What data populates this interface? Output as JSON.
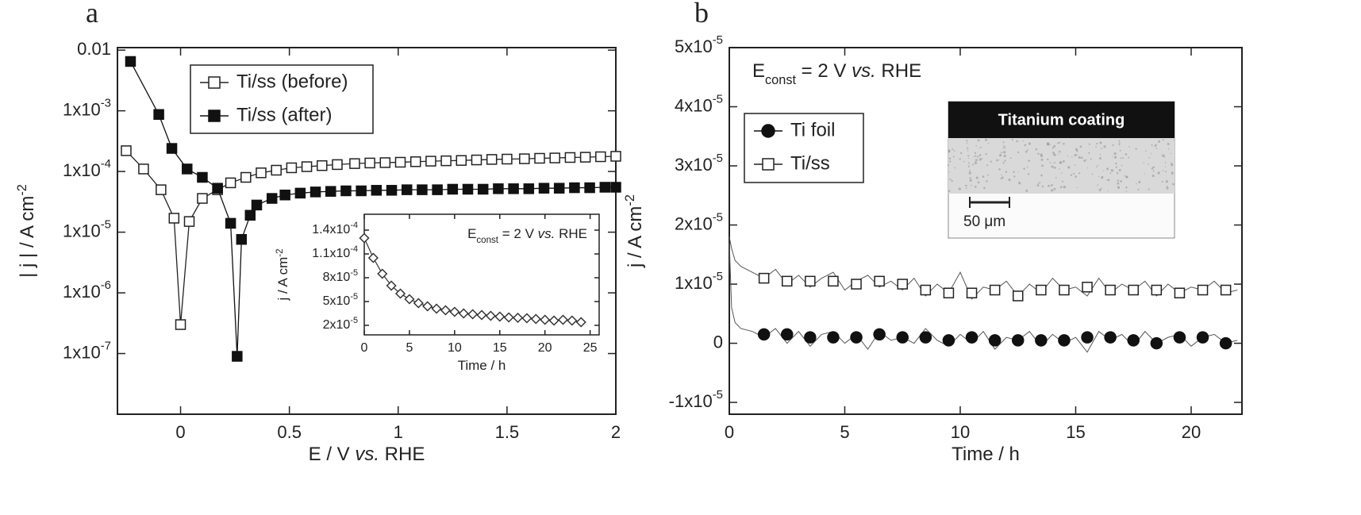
{
  "chart_data": [
    {
      "type": "line",
      "panel_label": "a",
      "xlabel": [
        "E / V ",
        "vs.",
        " RHE"
      ],
      "ylabel": [
        "| j | / A cm",
        "-2"
      ],
      "xlim": [
        -0.29,
        2
      ],
      "ylim": [
        1e-08,
        0.011
      ],
      "yscale": "log",
      "xticks": [
        0,
        0.5,
        1,
        1.5,
        2
      ],
      "yticks": [
        0.01,
        {
          "value": 0.001,
          "label": "1x10-3"
        },
        {
          "value": 0.0001,
          "label": "1x10-4"
        },
        {
          "value": 1e-05,
          "label": "1x10-5"
        },
        {
          "value": 1e-06,
          "label": "1x10-6"
        },
        {
          "value": 1e-07,
          "label": "1x10-7"
        }
      ],
      "legend": "upper left",
      "series": [
        {
          "name": "Ti/ss (before)",
          "color": "#222222",
          "marker": "square",
          "filled": false,
          "line": true,
          "x": [
            -0.25,
            -0.17,
            -0.09,
            -0.03,
            0.0,
            0.04,
            0.1,
            0.17,
            0.23,
            0.3,
            0.37,
            0.44,
            0.51,
            0.58,
            0.65,
            0.72,
            0.8,
            0.87,
            0.94,
            1.01,
            1.08,
            1.15,
            1.22,
            1.29,
            1.36,
            1.43,
            1.5,
            1.58,
            1.65,
            1.72,
            1.79,
            1.86,
            1.93,
            2.0
          ],
          "values": [
            0.00022,
            0.00011,
            5e-05,
            1.7e-05,
            3e-07,
            1.5e-05,
            3.6e-05,
            5e-05,
            6.5e-05,
            8e-05,
            9.5e-05,
            0.000105,
            0.000115,
            0.00012,
            0.000125,
            0.00013,
            0.000135,
            0.000138,
            0.00014,
            0.000142,
            0.000145,
            0.000148,
            0.00015,
            0.000152,
            0.000155,
            0.000158,
            0.00016,
            0.000162,
            0.000165,
            0.000167,
            0.00017,
            0.000172,
            0.000175,
            0.000178
          ]
        },
        {
          "name": "Ti/ss (after)",
          "color": "#111111",
          "marker": "square",
          "filled": true,
          "line": true,
          "x": [
            -0.23,
            -0.1,
            -0.04,
            0.03,
            0.1,
            0.17,
            0.23,
            0.26,
            0.28,
            0.32,
            0.35,
            0.42,
            0.48,
            0.55,
            0.62,
            0.69,
            0.76,
            0.83,
            0.9,
            0.97,
            1.04,
            1.11,
            1.18,
            1.25,
            1.32,
            1.39,
            1.46,
            1.53,
            1.6,
            1.67,
            1.74,
            1.81,
            1.88,
            1.95,
            2.0
          ],
          "values": [
            0.0065,
            0.00087,
            0.00024,
            0.00011,
            8e-05,
            5.3e-05,
            1.4e-05,
            9e-08,
            7.6e-06,
            1.9e-05,
            2.8e-05,
            3.6e-05,
            4.1e-05,
            4.4e-05,
            4.6e-05,
            4.7e-05,
            4.8e-05,
            4.8e-05,
            4.9e-05,
            4.9e-05,
            5e-05,
            5e-05,
            5e-05,
            5.1e-05,
            5.1e-05,
            5.1e-05,
            5.2e-05,
            5.2e-05,
            5.2e-05,
            5.3e-05,
            5.3e-05,
            5.4e-05,
            5.4e-05,
            5.5e-05,
            5.5e-05
          ]
        }
      ],
      "inset": {
        "type": "line",
        "xlabel": "Time / h",
        "ylabel": [
          "j / A cm",
          "-2"
        ],
        "annotation": [
          "E",
          "const",
          " = 2 V ",
          "vs.",
          " RHE"
        ],
        "xlim": [
          0,
          26
        ],
        "ylim": [
          8e-06,
          0.00016
        ],
        "xticks": [
          0,
          5,
          10,
          15,
          20,
          25
        ],
        "yticks": [
          {
            "value": 0.00014,
            "label": "1.4x10-4"
          },
          {
            "value": 0.00011,
            "label": "1.1x10-4"
          },
          {
            "value": 8e-05,
            "label": "8x10-5"
          },
          {
            "value": 5e-05,
            "label": "5x10-5"
          },
          {
            "value": 2e-05,
            "label": "2x10-5"
          }
        ],
        "series": [
          {
            "color": "#333333",
            "marker": "diamond",
            "filled": false,
            "line": true,
            "x": [
              0,
              1,
              2,
              3,
              4,
              5,
              6,
              7,
              8,
              9,
              10,
              11,
              12,
              13,
              14,
              15,
              16,
              17,
              18,
              19,
              20,
              21,
              22,
              23,
              24
            ],
            "values": [
              0.00013,
              0.000105,
              8.5e-05,
              7e-05,
              6e-05,
              5.3e-05,
              4.8e-05,
              4.4e-05,
              4.1e-05,
              3.9e-05,
              3.7e-05,
              3.5e-05,
              3.4e-05,
              3.3e-05,
              3.2e-05,
              3.1e-05,
              3e-05,
              2.95e-05,
              2.9e-05,
              2.8e-05,
              2.7e-05,
              2.6e-05,
              2.7e-05,
              2.6e-05,
              2.4e-05
            ]
          }
        ]
      }
    },
    {
      "type": "line",
      "panel_label": "b",
      "xlabel": "Time / h",
      "ylabel": [
        "j / A cm",
        "-2"
      ],
      "annotation": [
        "E",
        "const",
        " = 2 V ",
        "vs.",
        " RHE"
      ],
      "image": {
        "title": "Titanium coating",
        "scale_bar": "50 μm"
      },
      "xlim": [
        0,
        22.2
      ],
      "ylim": [
        -1.2e-05,
        5e-05
      ],
      "xticks": [
        0,
        5,
        10,
        15,
        20
      ],
      "yticks": [
        {
          "value": 5e-05,
          "label": "5x10-5"
        },
        {
          "value": 4e-05,
          "label": "4x10-5"
        },
        {
          "value": 3e-05,
          "label": "3x10-5"
        },
        {
          "value": 2e-05,
          "label": "2x10-5"
        },
        {
          "value": 1e-05,
          "label": "1x10-5"
        },
        0,
        {
          "value": -1e-05,
          "label": "-1x10-5"
        }
      ],
      "legend": "upper left",
      "series": [
        {
          "color": "#555555",
          "marker": "none",
          "line": true,
          "x": [
            0,
            0.1,
            0.25,
            0.5,
            1,
            1.5,
            2,
            2.5,
            3,
            3.5,
            4,
            4.5,
            5,
            5.5,
            6,
            6.5,
            7,
            7.5,
            8,
            8.5,
            9,
            9.5,
            10,
            10.5,
            11,
            11.5,
            12,
            12.5,
            13,
            13.5,
            14,
            14.5,
            15,
            15.5,
            16,
            16.5,
            17,
            17.5,
            18,
            18.5,
            19,
            19.5,
            20,
            20.5,
            21,
            21.5,
            22
          ],
          "values": [
            1.8e-05,
            1.6e-05,
            1.4e-05,
            1.3e-05,
            1.2e-05,
            1.1e-05,
            1.25e-05,
            1e-05,
            1.15e-05,
            9.5e-06,
            1.1e-05,
            1.2e-05,
            9e-06,
            1.05e-05,
            1.15e-05,
            9.5e-06,
            1.05e-05,
            9e-06,
            1.1e-05,
            8e-06,
            1e-05,
            8.5e-06,
            1.2e-05,
            7.5e-06,
            9.5e-06,
            9e-06,
            1.05e-05,
            8e-06,
            1e-05,
            8.5e-06,
            1.1e-05,
            9e-06,
            9.5e-06,
            8e-06,
            1.1e-05,
            8.5e-06,
            1e-05,
            9e-06,
            1.05e-05,
            8e-06,
            1e-05,
            8.5e-06,
            9.5e-06,
            9e-06,
            1.05e-05,
            8.5e-06,
            9e-06
          ]
        },
        {
          "color": "#555555",
          "marker": "none",
          "line": true,
          "x": [
            0,
            0.1,
            0.25,
            0.5,
            1,
            1.5,
            2,
            2.5,
            3,
            3.5,
            4,
            4.5,
            5,
            5.5,
            6,
            6.5,
            7,
            7.5,
            8,
            8.5,
            9,
            9.5,
            10,
            10.5,
            11,
            11.5,
            12,
            12.5,
            13,
            13.5,
            14,
            14.5,
            15,
            15.5,
            16,
            16.5,
            17,
            17.5,
            18,
            18.5,
            19,
            19.5,
            20,
            20.5,
            21,
            21.5,
            22
          ],
          "values": [
            1.7e-05,
            6e-06,
            3.5e-06,
            2.5e-06,
            2e-06,
            1e-06,
            2.5e-06,
            0,
            2e-06,
            -5e-07,
            1.5e-06,
            2e-06,
            0,
            1.5e-06,
            -1e-06,
            2e-06,
            5e-07,
            1e-06,
            0,
            2.5e-06,
            5e-07,
            -5e-07,
            1.5e-06,
            0,
            2e-06,
            -1e-06,
            1e-06,
            5e-07,
            2e-06,
            -5e-07,
            1.5e-06,
            0,
            1e-06,
            -1.5e-06,
            2e-06,
            5e-07,
            1.5e-06,
            -5e-07,
            2e-06,
            0,
            1e-06,
            1.5e-06,
            -5e-07,
            1e-06,
            1.5e-06,
            0,
            5e-07
          ]
        },
        {
          "name": "Ti foil",
          "color": "#111111",
          "marker": "circle",
          "filled": true,
          "line": false,
          "x": [
            1.5,
            2.5,
            3.5,
            4.5,
            5.5,
            6.5,
            7.5,
            8.5,
            9.5,
            10.5,
            11.5,
            12.5,
            13.5,
            14.5,
            15.5,
            16.5,
            17.5,
            18.5,
            19.5,
            20.5,
            21.5
          ],
          "values": [
            1.5e-06,
            1.5e-06,
            1e-06,
            1e-06,
            1e-06,
            1.5e-06,
            1e-06,
            1e-06,
            5e-07,
            1e-06,
            5e-07,
            5e-07,
            5e-07,
            5e-07,
            1e-06,
            1e-06,
            5e-07,
            0,
            1e-06,
            1e-06,
            0
          ]
        },
        {
          "name": "Ti/ss",
          "color": "#222222",
          "marker": "square",
          "filled": false,
          "line": false,
          "x": [
            1.5,
            2.5,
            3.5,
            4.5,
            5.5,
            6.5,
            7.5,
            8.5,
            9.5,
            10.5,
            11.5,
            12.5,
            13.5,
            14.5,
            15.5,
            16.5,
            17.5,
            18.5,
            19.5,
            20.5,
            21.5
          ],
          "values": [
            1.1e-05,
            1.05e-05,
            1.05e-05,
            1.05e-05,
            1e-05,
            1.05e-05,
            1e-05,
            9e-06,
            8.5e-06,
            8.5e-06,
            9e-06,
            8e-06,
            9e-06,
            9e-06,
            9.5e-06,
            9e-06,
            9e-06,
            9e-06,
            8.5e-06,
            9e-06,
            9e-06
          ]
        }
      ]
    }
  ]
}
